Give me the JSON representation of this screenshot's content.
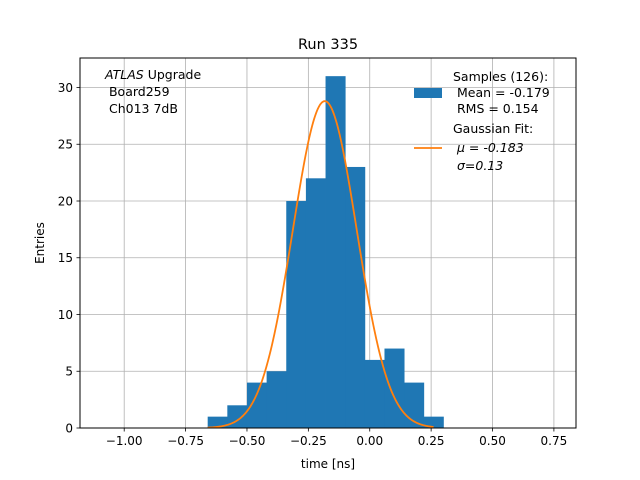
{
  "chart_data": {
    "type": "bar",
    "title": "Run 335",
    "xlabel": "time [ns]",
    "ylabel": "Entries",
    "xlim": [
      -1.18,
      0.84
    ],
    "ylim": [
      0,
      32.6
    ],
    "grid": true,
    "xticks": [
      -1.0,
      -0.75,
      -0.5,
      -0.25,
      0.0,
      0.25,
      0.5,
      0.75
    ],
    "xtick_labels": [
      "−1.00",
      "−0.75",
      "−0.50",
      "−0.25",
      "0.00",
      "0.25",
      "0.50",
      "0.75"
    ],
    "yticks": [
      0,
      5,
      10,
      15,
      20,
      25,
      30
    ],
    "ytick_labels": [
      "0",
      "5",
      "10",
      "15",
      "20",
      "25",
      "30"
    ],
    "annotation": {
      "line1_italic": "ATLAS",
      "line1_rest": " Upgrade",
      "line2": " Board259",
      "line3": " Ch013 7dB"
    },
    "legend": {
      "position": "top-right",
      "entries": [
        {
          "kind": "bar",
          "lines": [
            "Samples (126):",
            " Mean = -0.179",
            " RMS = 0.154"
          ]
        },
        {
          "kind": "line",
          "lines": [
            "Gaussian Fit:",
            " μ = -0.183",
            " σ=0.13"
          ]
        }
      ]
    },
    "series": [
      {
        "type": "histogram",
        "color": "#1f77b4",
        "bin_edges": [
          -0.66,
          -0.58,
          -0.5,
          -0.42,
          -0.34,
          -0.26,
          -0.18,
          -0.1,
          -0.02,
          0.06,
          0.14,
          0.22,
          0.3
        ],
        "values": [
          1,
          2,
          4,
          5,
          20,
          22,
          31,
          23,
          6,
          7,
          4,
          1
        ]
      },
      {
        "type": "line",
        "color": "#ff7f0e",
        "mu": -0.183,
        "sigma": 0.13,
        "amplitude": 28.8,
        "x_range": [
          -0.66,
          0.26
        ]
      }
    ]
  }
}
